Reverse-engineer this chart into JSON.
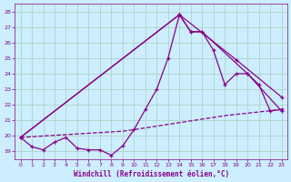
{
  "xlabel": "Windchill (Refroidissement éolien,°C)",
  "background_color": "#cceeff",
  "grid_color": "#aaccbb",
  "line_color": "#880088",
  "xlim": [
    -0.5,
    23.5
  ],
  "ylim": [
    18.5,
    28.5
  ],
  "yticks": [
    19,
    20,
    21,
    22,
    23,
    24,
    25,
    26,
    27,
    28
  ],
  "xticks": [
    0,
    1,
    2,
    3,
    4,
    5,
    6,
    7,
    8,
    9,
    10,
    11,
    12,
    13,
    14,
    15,
    16,
    17,
    18,
    19,
    20,
    21,
    22,
    23
  ],
  "series1_x": [
    0,
    1,
    2,
    3,
    4,
    5,
    6,
    7,
    8,
    9,
    10,
    11,
    12,
    13,
    14,
    15,
    16,
    17,
    18,
    19,
    20,
    21,
    22,
    23
  ],
  "series1_y": [
    19.9,
    19.3,
    19.1,
    19.6,
    19.9,
    19.2,
    19.1,
    19.1,
    18.75,
    19.35,
    20.4,
    21.7,
    23.0,
    25.0,
    27.8,
    26.7,
    26.7,
    25.5,
    23.3,
    24.0,
    24.0,
    23.3,
    21.6,
    21.7
  ],
  "series2_x": [
    0,
    14,
    15,
    16,
    20,
    23
  ],
  "series2_y": [
    19.9,
    27.8,
    26.7,
    26.7,
    24.0,
    21.6
  ],
  "series3_x": [
    0,
    14,
    19,
    23
  ],
  "series3_y": [
    19.9,
    27.8,
    24.9,
    22.5
  ],
  "series4_x": [
    0,
    9,
    10,
    18,
    23
  ],
  "series4_y": [
    19.9,
    20.3,
    20.4,
    21.3,
    21.7
  ]
}
